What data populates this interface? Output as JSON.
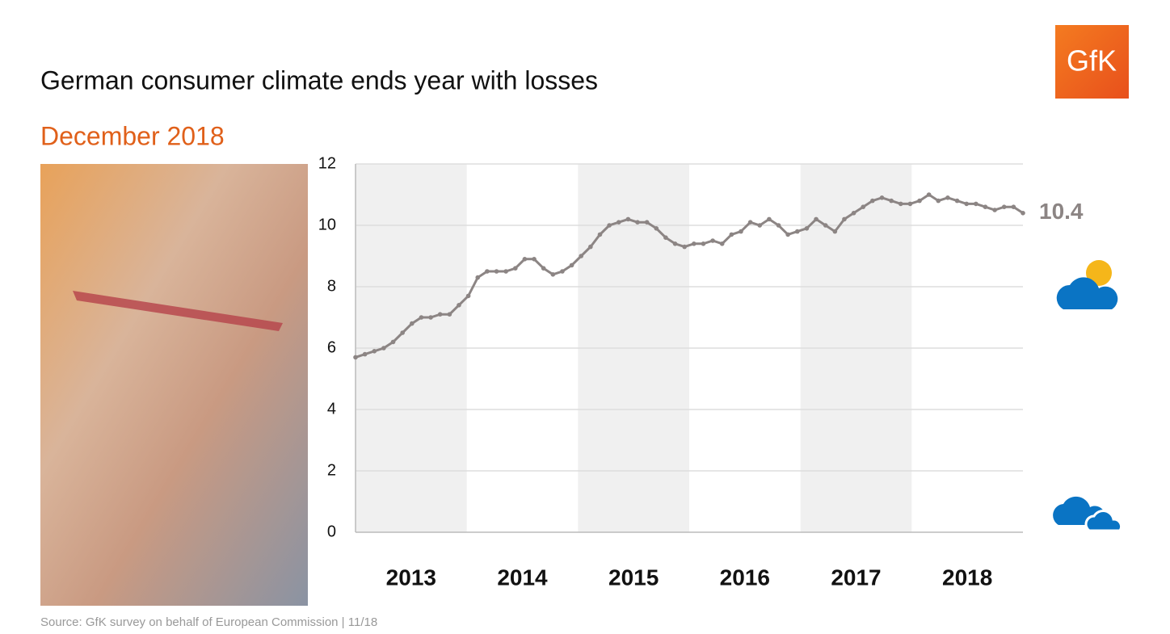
{
  "chart_data": {
    "type": "line",
    "title": "German consumer climate ends year with losses",
    "subtitle": "December 2018",
    "logo": "GfK",
    "source": "Source: GfK survey on behalf of European Commission | 11/18",
    "categories": [
      "2013",
      null,
      null,
      null,
      null,
      null,
      null,
      null,
      null,
      null,
      null,
      null,
      "2014",
      null,
      null,
      null,
      null,
      null,
      null,
      null,
      null,
      null,
      null,
      null,
      "2015",
      null,
      null,
      null,
      null,
      null,
      null,
      null,
      null,
      null,
      null,
      null,
      "2016",
      null,
      null,
      null,
      null,
      null,
      null,
      null,
      null,
      null,
      null,
      null,
      "2017",
      null,
      null,
      null,
      null,
      null,
      null,
      null,
      null,
      null,
      null,
      null,
      "2018",
      null,
      null,
      null,
      null,
      null,
      null,
      null,
      null,
      null,
      null,
      null
    ],
    "series": [
      {
        "color": "#8c8584",
        "values": [
          5.7,
          5.8,
          5.9,
          6.0,
          6.2,
          6.5,
          6.8,
          7.0,
          7.0,
          7.1,
          7.1,
          7.4,
          7.7,
          8.3,
          8.5,
          8.5,
          8.5,
          8.6,
          8.9,
          8.9,
          8.6,
          8.4,
          8.5,
          8.7,
          9.0,
          9.3,
          9.7,
          10.0,
          10.1,
          10.2,
          10.1,
          10.1,
          9.9,
          9.6,
          9.4,
          9.3,
          9.4,
          9.4,
          9.5,
          9.4,
          9.7,
          9.8,
          10.1,
          10.0,
          10.2,
          10.0,
          9.7,
          9.8,
          9.9,
          10.2,
          10.0,
          9.8,
          10.2,
          10.4,
          10.6,
          10.8,
          10.9,
          10.8,
          10.7,
          10.7,
          10.8,
          11.0,
          10.8,
          10.9,
          10.8,
          10.7,
          10.7,
          10.6,
          10.5,
          10.6,
          10.6,
          10.4
        ]
      }
    ],
    "ylim": [
      0,
      12
    ],
    "yticks": [
      0,
      2,
      4,
      6,
      8,
      10,
      12
    ],
    "grid": true
  }
}
